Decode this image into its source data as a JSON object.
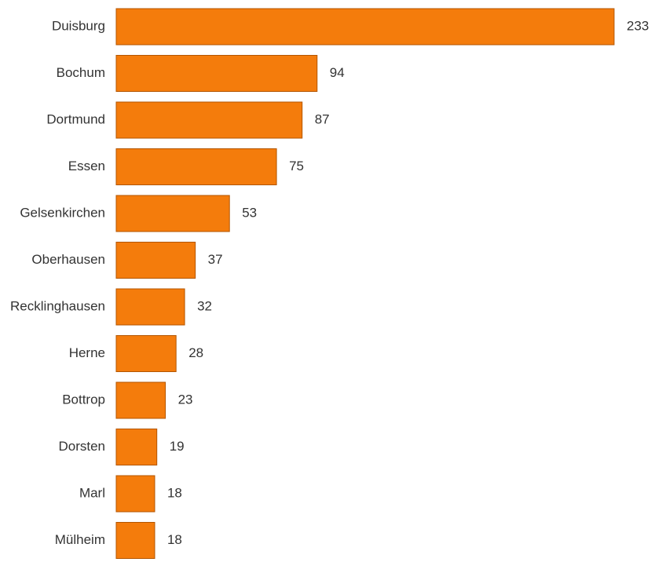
{
  "chart_data": {
    "type": "bar",
    "orientation": "horizontal",
    "title": "",
    "xlabel": "",
    "ylabel": "",
    "categories": [
      "Duisburg",
      "Bochum",
      "Dortmund",
      "Essen",
      "Gelsenkirchen",
      "Oberhausen",
      "Recklinghausen",
      "Herne",
      "Bottrop",
      "Dorsten",
      "Marl",
      "Mülheim"
    ],
    "values": [
      233,
      94,
      87,
      75,
      53,
      37,
      32,
      28,
      23,
      19,
      18,
      18
    ],
    "xlim": [
      0,
      233
    ],
    "grid": false,
    "legend": "none",
    "bar_color": "#f47c0c",
    "bar_edge_color": "#b35500"
  }
}
